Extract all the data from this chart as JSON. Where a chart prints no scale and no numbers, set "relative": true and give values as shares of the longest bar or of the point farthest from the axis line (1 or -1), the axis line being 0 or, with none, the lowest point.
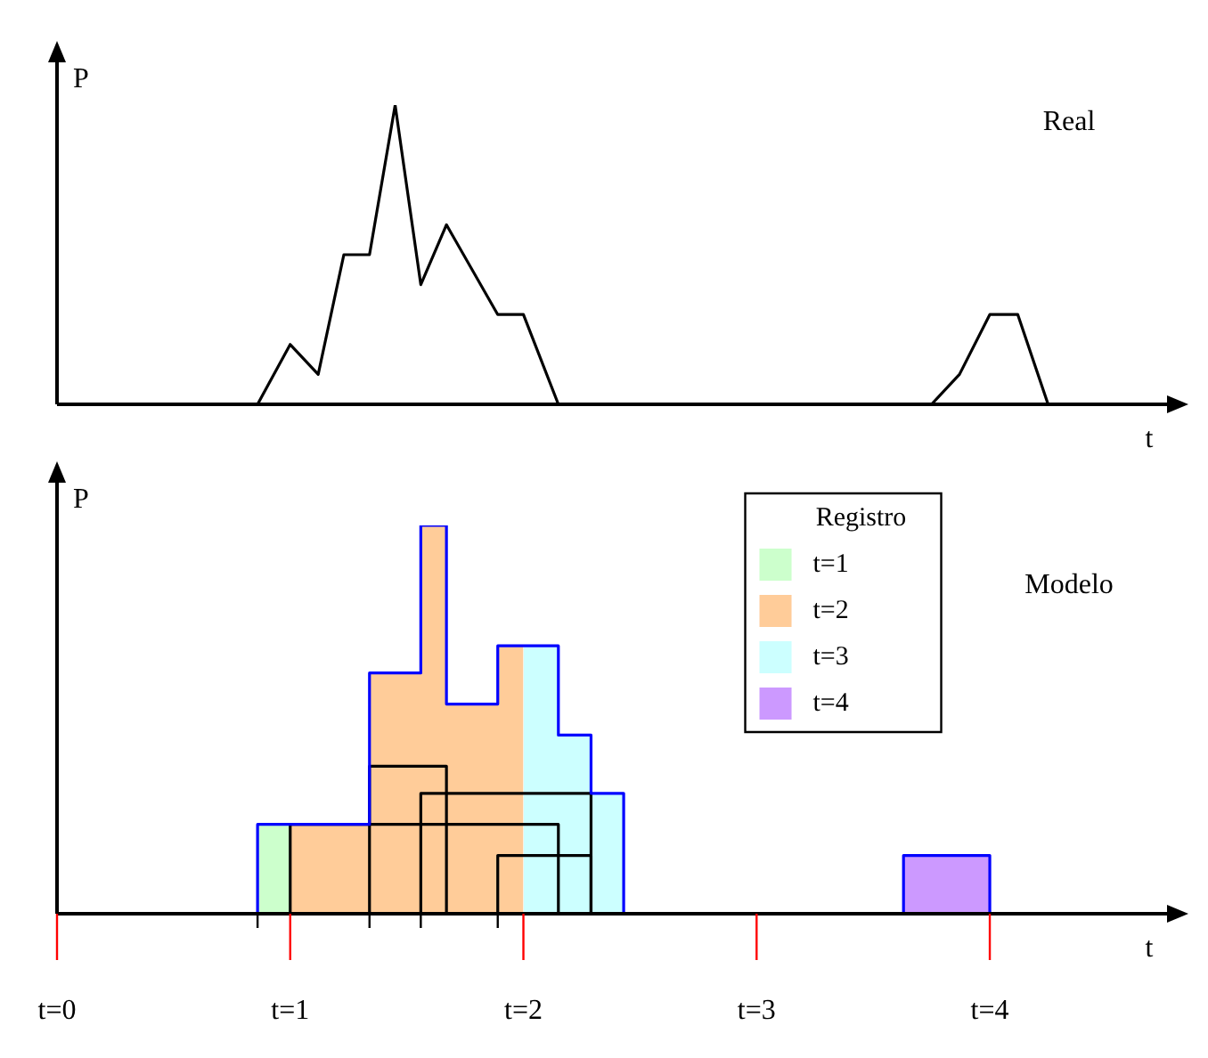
{
  "chart_data": [
    {
      "type": "line",
      "annotations": [
        "Real"
      ],
      "xlabel": "t",
      "ylabel": "P",
      "relative": true,
      "xlim": [
        0,
        4.76
      ],
      "tick_labels": false,
      "legend": false,
      "marker": "none",
      "series": [
        {
          "color": "#000000",
          "x": [
            0.86,
            1,
            1.12,
            1.23,
            1.34,
            1.45,
            1.56,
            1.67,
            1.89,
            2,
            2.15
          ],
          "values": [
            0,
            0.2,
            0.1,
            0.5,
            0.5,
            1,
            0.4,
            0.6,
            0.3,
            0.3,
            0
          ]
        },
        {
          "color": "#000000",
          "x": [
            3.75,
            3.87,
            4,
            4.12,
            4.25
          ],
          "values": [
            0,
            0.1,
            0.3,
            0.3,
            0
          ]
        }
      ]
    },
    {
      "type": "area",
      "annotations": [
        "Modelo"
      ],
      "xlabel": "t",
      "ylabel": "P",
      "relative": true,
      "xlim": [
        0,
        4.76
      ],
      "tick_labels": "x",
      "legend": "top right",
      "legend_title": "Registro",
      "marker": "none",
      "xticks": [
        {
          "value": 0,
          "label": "t=0"
        },
        {
          "value": 0.86,
          "label": null
        },
        {
          "value": 1,
          "label": "t=1"
        },
        {
          "value": 1.34,
          "label": null
        },
        {
          "value": 1.56,
          "label": null
        },
        {
          "value": 1.89,
          "label": null
        },
        {
          "value": 2,
          "label": "t=2"
        },
        {
          "value": 3,
          "label": "t=3"
        },
        {
          "value": 4,
          "label": "t=4"
        }
      ],
      "series": [
        {
          "name": "t=1",
          "color": "#ccffcc",
          "x": [
            0.86,
            0.86,
            1,
            1
          ],
          "values": [
            0,
            0.23,
            0.23,
            0
          ]
        },
        {
          "name": "t=2",
          "color": "#ffcc99",
          "x": [
            1,
            1,
            1.34,
            1.34,
            1.56,
            1.56,
            1.67,
            1.67,
            1.89,
            1.89,
            2,
            2
          ],
          "values": [
            0,
            0.23,
            0.23,
            0.62,
            0.62,
            1,
            1,
            0.54,
            0.54,
            0.69,
            0.69,
            0
          ]
        },
        {
          "name": "t=3",
          "color": "#ccffff",
          "x": [
            2,
            2,
            2.15,
            2.15,
            2.29,
            2.29,
            2.43,
            2.43
          ],
          "values": [
            0,
            0.69,
            0.69,
            0.46,
            0.46,
            0.31,
            0.31,
            0
          ]
        },
        {
          "name": "t=4",
          "color": "#cc99ff",
          "x": [
            3.63,
            3.63,
            4,
            4
          ],
          "values": [
            0,
            0.15,
            0.15,
            0
          ]
        },
        {
          "type": "line",
          "color": "#0000ff",
          "x": [
            0.86,
            0.86,
            1.34,
            1.34,
            1.56,
            1.56,
            1.67,
            1.67,
            1.89,
            1.89,
            2.15,
            2.15,
            2.29,
            2.29,
            2.43,
            2.43,
            3.63,
            3.63,
            4,
            4
          ],
          "values": [
            0,
            0.23,
            0.23,
            0.62,
            0.62,
            1,
            1,
            0.54,
            0.54,
            0.69,
            0.69,
            0.46,
            0.46,
            0.31,
            0.31,
            0,
            0,
            0.15,
            0.15,
            0
          ]
        },
        {
          "type": "line",
          "color": "#000000",
          "x": [
            1.34,
            1.34,
            1.67,
            1.67
          ],
          "values": [
            0,
            0.38,
            0.38,
            0
          ]
        },
        {
          "type": "line",
          "color": "#000000",
          "x": [
            1.56,
            1.56,
            2.29,
            2.29
          ],
          "values": [
            0,
            0.31,
            0.31,
            0
          ]
        },
        {
          "type": "line",
          "color": "#000000",
          "x": [
            1,
            1,
            2.15,
            2.15
          ],
          "values": [
            0,
            0.23,
            0.23,
            0
          ]
        },
        {
          "type": "line",
          "color": "#000000",
          "x": [
            1.89,
            1.89,
            2.29,
            2.29
          ],
          "values": [
            0,
            0.15,
            0.15,
            0
          ]
        }
      ]
    }
  ]
}
